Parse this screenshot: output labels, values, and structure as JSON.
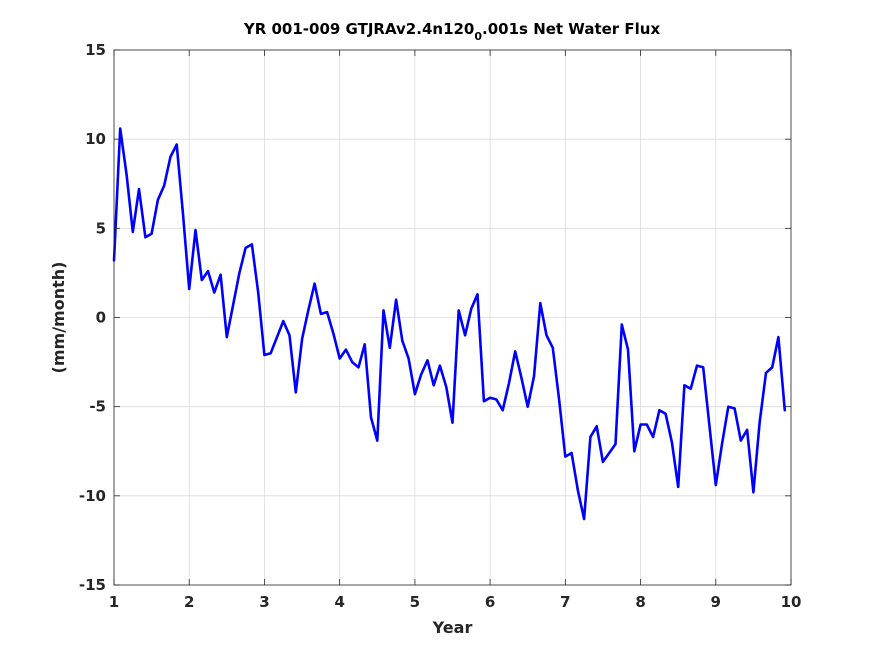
{
  "chart_data": {
    "type": "line",
    "title": {
      "before": "YR 001-009 GTJRAv2.4n120",
      "subscript": "0",
      "after": ".001s Net Water Flux"
    },
    "xlabel": "Year",
    "ylabel": "(mm/month)",
    "xlim": [
      1,
      10
    ],
    "ylim": [
      -15,
      15
    ],
    "xticks": [
      1,
      2,
      3,
      4,
      5,
      6,
      7,
      8,
      9,
      10
    ],
    "yticks": [
      -15,
      -10,
      -5,
      0,
      5,
      10,
      15
    ],
    "grid": true,
    "series": [
      {
        "color": "#0000ff",
        "x": [
          1.0,
          1.083,
          1.167,
          1.25,
          1.333,
          1.417,
          1.5,
          1.583,
          1.667,
          1.75,
          1.833,
          1.917,
          2.0,
          2.083,
          2.167,
          2.25,
          2.333,
          2.417,
          2.5,
          2.583,
          2.667,
          2.75,
          2.833,
          2.917,
          3.0,
          3.083,
          3.167,
          3.25,
          3.333,
          3.417,
          3.5,
          3.583,
          3.667,
          3.75,
          3.833,
          3.917,
          4.0,
          4.083,
          4.167,
          4.25,
          4.333,
          4.417,
          4.5,
          4.583,
          4.667,
          4.75,
          4.833,
          4.917,
          5.0,
          5.083,
          5.167,
          5.25,
          5.333,
          5.417,
          5.5,
          5.583,
          5.667,
          5.75,
          5.833,
          5.917,
          6.0,
          6.083,
          6.167,
          6.25,
          6.333,
          6.417,
          6.5,
          6.583,
          6.667,
          6.75,
          6.833,
          6.917,
          7.0,
          7.083,
          7.167,
          7.25,
          7.333,
          7.417,
          7.5,
          7.583,
          7.667,
          7.75,
          7.833,
          7.917,
          8.0,
          8.083,
          8.167,
          8.25,
          8.333,
          8.417,
          8.5,
          8.583,
          8.667,
          8.75,
          8.833,
          8.917,
          9.0,
          9.083,
          9.167,
          9.25,
          9.333,
          9.417,
          9.5,
          9.583,
          9.667,
          9.75,
          9.833,
          9.917
        ],
        "y": [
          3.2,
          10.6,
          8.0,
          4.8,
          7.2,
          4.5,
          4.7,
          6.6,
          7.4,
          9.0,
          9.7,
          5.8,
          1.6,
          4.9,
          2.1,
          2.6,
          1.4,
          2.4,
          -1.1,
          0.7,
          2.5,
          3.9,
          4.1,
          1.4,
          -2.1,
          -2.0,
          -1.1,
          -0.2,
          -1.0,
          -4.2,
          -1.2,
          0.4,
          1.9,
          0.2,
          0.3,
          -0.9,
          -2.3,
          -1.8,
          -2.5,
          -2.8,
          -1.5,
          -5.6,
          -6.9,
          0.4,
          -1.7,
          1.0,
          -1.3,
          -2.3,
          -4.3,
          -3.2,
          -2.4,
          -3.8,
          -2.7,
          -3.9,
          -5.9,
          0.4,
          -1.0,
          0.5,
          1.3,
          -4.7,
          -4.5,
          -4.6,
          -5.2,
          -3.7,
          -1.9,
          -3.4,
          -5.0,
          -3.3,
          0.8,
          -1.0,
          -1.7,
          -4.6,
          -7.8,
          -7.6,
          -9.7,
          -11.3,
          -6.7,
          -6.1,
          -8.1,
          -7.6,
          -7.1,
          -0.4,
          -1.8,
          -7.5,
          -6.0,
          -6.0,
          -6.7,
          -5.2,
          -5.4,
          -7.0,
          -9.5,
          -3.8,
          -4.0,
          -2.7,
          -2.8,
          -6.1,
          -9.4,
          -7.1,
          -5.0,
          -5.1,
          -6.9,
          -6.3,
          -9.8,
          -5.9,
          -3.1,
          -2.8,
          -1.1,
          -5.2
        ]
      }
    ]
  }
}
